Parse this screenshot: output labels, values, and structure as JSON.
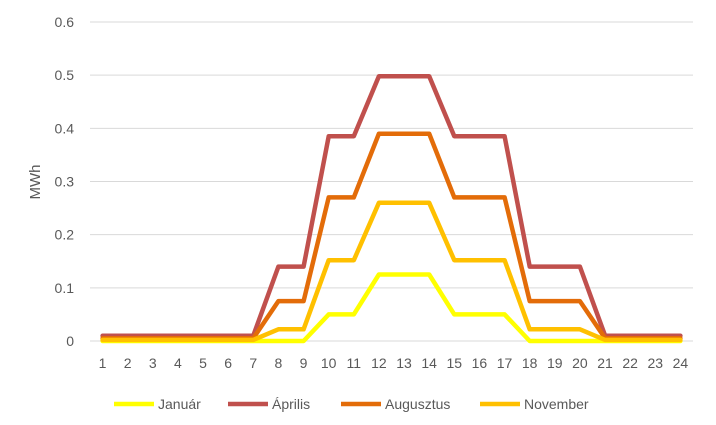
{
  "chart_data": {
    "type": "line",
    "ylabel": "MWh",
    "xlabel": "",
    "x": [
      1,
      2,
      3,
      4,
      5,
      6,
      7,
      8,
      9,
      10,
      11,
      12,
      13,
      14,
      15,
      16,
      17,
      18,
      19,
      20,
      21,
      22,
      23,
      24
    ],
    "y_ticks": [
      0,
      0.1,
      0.2,
      0.3,
      0.4,
      0.5,
      0.6
    ],
    "y_tick_labels": [
      "0",
      "0.1",
      "0.2",
      "0.3",
      "0.4",
      "0.5",
      "0.6"
    ],
    "ylim": [
      0,
      0.6
    ],
    "grid": true,
    "legend_position": "bottom",
    "series": [
      {
        "name": "Január",
        "color": "#FFFF00",
        "values": [
          0,
          0,
          0,
          0,
          0,
          0,
          0,
          0,
          0,
          0.05,
          0.05,
          0.125,
          0.125,
          0.125,
          0.05,
          0.05,
          0.05,
          0,
          0,
          0,
          0,
          0,
          0,
          0
        ]
      },
      {
        "name": "Április",
        "color": "#C0504D",
        "values": [
          0.01,
          0.01,
          0.01,
          0.01,
          0.01,
          0.01,
          0.01,
          0.14,
          0.14,
          0.385,
          0.385,
          0.498,
          0.498,
          0.498,
          0.385,
          0.385,
          0.385,
          0.14,
          0.14,
          0.14,
          0.01,
          0.01,
          0.01,
          0.01
        ]
      },
      {
        "name": "Augusztus",
        "color": "#E36C09",
        "values": [
          0.005,
          0.005,
          0.005,
          0.005,
          0.005,
          0.005,
          0.005,
          0.075,
          0.075,
          0.27,
          0.27,
          0.39,
          0.39,
          0.39,
          0.27,
          0.27,
          0.27,
          0.075,
          0.075,
          0.075,
          0.005,
          0.005,
          0.005,
          0.005
        ]
      },
      {
        "name": "November",
        "color": "#FFC000",
        "values": [
          0.002,
          0.002,
          0.002,
          0.002,
          0.002,
          0.002,
          0.002,
          0.022,
          0.022,
          0.152,
          0.152,
          0.26,
          0.26,
          0.26,
          0.152,
          0.152,
          0.152,
          0.022,
          0.022,
          0.022,
          0.002,
          0.002,
          0.002,
          0.002
        ]
      }
    ]
  }
}
